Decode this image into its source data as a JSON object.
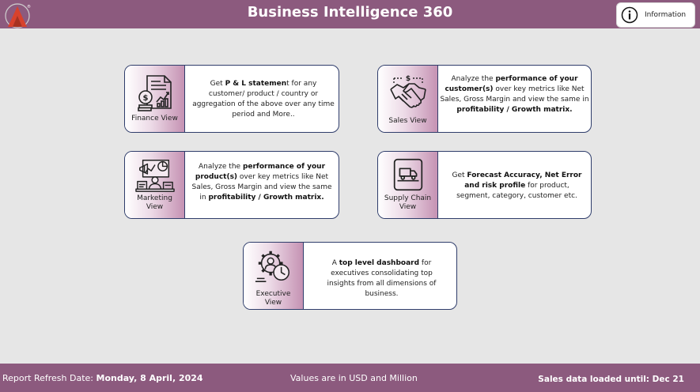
{
  "header": {
    "title": "Business Intelligence 360",
    "info_label": "Information"
  },
  "cards": {
    "finance": {
      "label": "Finance View",
      "desc_1": "Get ",
      "desc_2": "P & L statemen",
      "desc_3": "t for any customer/ product / country or aggregation of the above over any time period and More.."
    },
    "sales": {
      "label": "Sales View",
      "desc_1": "Analyze the ",
      "desc_2": "performance of your customer(s)",
      "desc_3": " over key metrics like Net Sales, Gross Margin and view the same in ",
      "desc_4": "profitability / Growth matrix."
    },
    "marketing": {
      "label": "Marketing View",
      "desc_1": "Analyze the ",
      "desc_2": "performance of your product(s)",
      "desc_3": " over key metrics like Net Sales, Gross Margin and view the same in ",
      "desc_4": "profitability / Growth matrix."
    },
    "supply_chain": {
      "label": "Supply Chain View",
      "desc_1": "Get ",
      "desc_2": "Forecast Accuracy, Net Error and risk profile",
      "desc_3": " for product, segment, category, customer etc."
    },
    "executive": {
      "label": "Executive View",
      "desc_1": "A ",
      "desc_2": "top level dashboard",
      "desc_3": " for executives consolidating top insights from all dimensions of business."
    }
  },
  "footer": {
    "refresh_prefix": "Report Refresh Date: ",
    "refresh_date": "Monday, 8 April, 2024",
    "currency_note": "Values are in USD and Million",
    "loaded_note": "Sales data loaded until: Dec 21"
  },
  "colors": {
    "accent": "#8c5a7e",
    "card_border": "#2f3d6b",
    "logo_red": "#d8422c"
  },
  "icons": {
    "logo": "atliq-logo",
    "info": "info-circle-icon",
    "finance": "finance-report-icon",
    "sales": "handshake-icon",
    "marketing": "marketing-board-icon",
    "supply_chain": "delivery-truck-icon",
    "executive": "executive-gear-clock-icon"
  }
}
